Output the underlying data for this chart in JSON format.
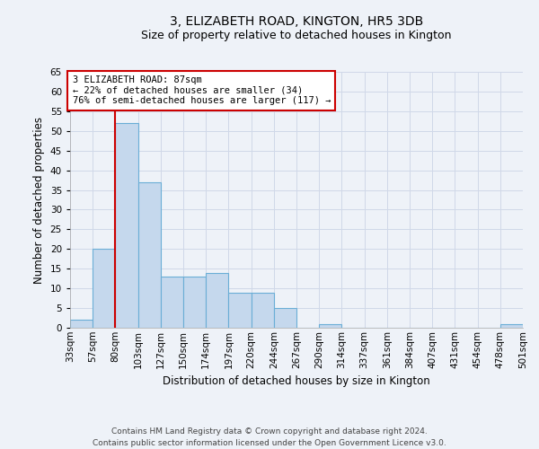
{
  "title": "3, ELIZABETH ROAD, KINGTON, HR5 3DB",
  "subtitle": "Size of property relative to detached houses in Kington",
  "xlabel": "Distribution of detached houses by size in Kington",
  "ylabel": "Number of detached properties",
  "footer_line1": "Contains HM Land Registry data © Crown copyright and database right 2024.",
  "footer_line2": "Contains public sector information licensed under the Open Government Licence v3.0.",
  "bin_labels": [
    "33sqm",
    "57sqm",
    "80sqm",
    "103sqm",
    "127sqm",
    "150sqm",
    "174sqm",
    "197sqm",
    "220sqm",
    "244sqm",
    "267sqm",
    "290sqm",
    "314sqm",
    "337sqm",
    "361sqm",
    "384sqm",
    "407sqm",
    "431sqm",
    "454sqm",
    "478sqm",
    "501sqm"
  ],
  "bar_values": [
    2,
    20,
    52,
    37,
    13,
    13,
    14,
    9,
    9,
    5,
    0,
    1,
    0,
    0,
    0,
    0,
    0,
    0,
    0,
    1
  ],
  "bar_color": "#c5d8ed",
  "bar_edge_color": "#6aaed6",
  "bar_edge_width": 0.8,
  "ylim": [
    0,
    65
  ],
  "yticks": [
    0,
    5,
    10,
    15,
    20,
    25,
    30,
    35,
    40,
    45,
    50,
    55,
    60,
    65
  ],
  "redline_x": 2,
  "annotation_text_line1": "3 ELIZABETH ROAD: 87sqm",
  "annotation_text_line2": "← 22% of detached houses are smaller (34)",
  "annotation_text_line3": "76% of semi-detached houses are larger (117) →",
  "annotation_box_color": "#ffffff",
  "annotation_border_color": "#cc0000",
  "redline_color": "#cc0000",
  "grid_color": "#d0d8e8",
  "background_color": "#eef2f8",
  "title_fontsize": 10,
  "subtitle_fontsize": 9,
  "axis_label_fontsize": 8.5,
  "tick_fontsize": 7.5,
  "annotation_fontsize": 7.5,
  "footer_fontsize": 6.5
}
